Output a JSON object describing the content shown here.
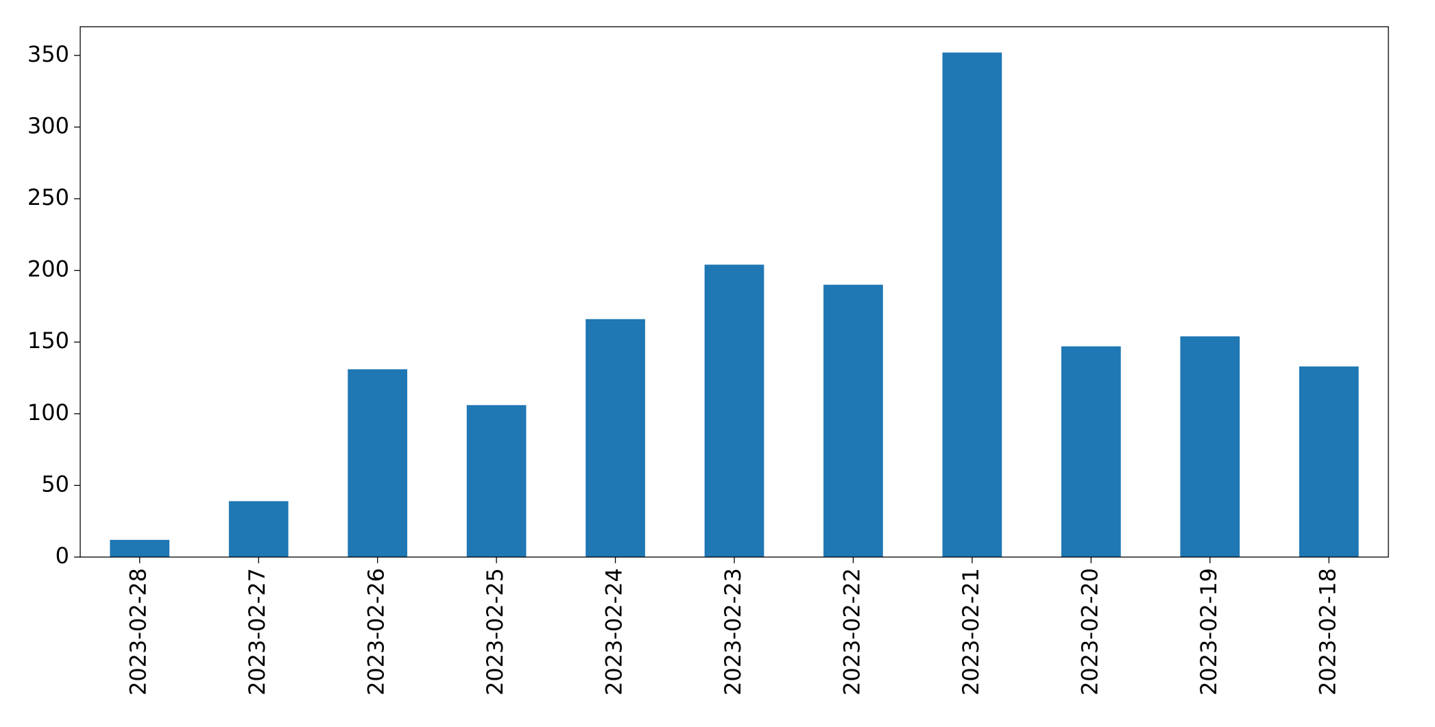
{
  "chart_data": {
    "type": "bar",
    "categories": [
      "2023-02-28",
      "2023-02-27",
      "2023-02-26",
      "2023-02-25",
      "2023-02-24",
      "2023-02-23",
      "2023-02-22",
      "2023-02-21",
      "2023-02-20",
      "2023-02-19",
      "2023-02-18"
    ],
    "values": [
      12,
      39,
      131,
      106,
      166,
      204,
      190,
      352,
      147,
      154,
      133
    ],
    "color": "#1f77b4",
    "ylim": [
      0,
      370
    ],
    "yticks": [
      0,
      50,
      100,
      150,
      200,
      250,
      300,
      350
    ],
    "grid": false
  }
}
